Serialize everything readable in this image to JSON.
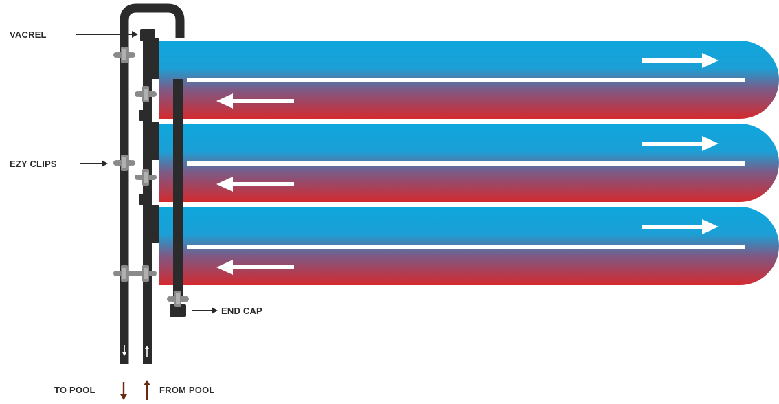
{
  "labels": {
    "vacrel": "VACREL",
    "ezy_clips": "EZY CLIPS",
    "end_cap": "END CAP",
    "to_pool": "TO POOL",
    "from_pool": "FROM POOL"
  },
  "panels": [
    {
      "flow_out": "right",
      "flow_return": "left"
    },
    {
      "flow_out": "right",
      "flow_return": "left"
    },
    {
      "flow_out": "right",
      "flow_return": "left"
    }
  ],
  "colors": {
    "cool": "#0ea6dc",
    "warm": "#d42a2e",
    "pipe": "#2b2b2b",
    "clip": "#8a8a8a",
    "label": "#2a2a2a",
    "pool_arrow": "#6b2a14",
    "flow_arrow": "#ffffff"
  }
}
